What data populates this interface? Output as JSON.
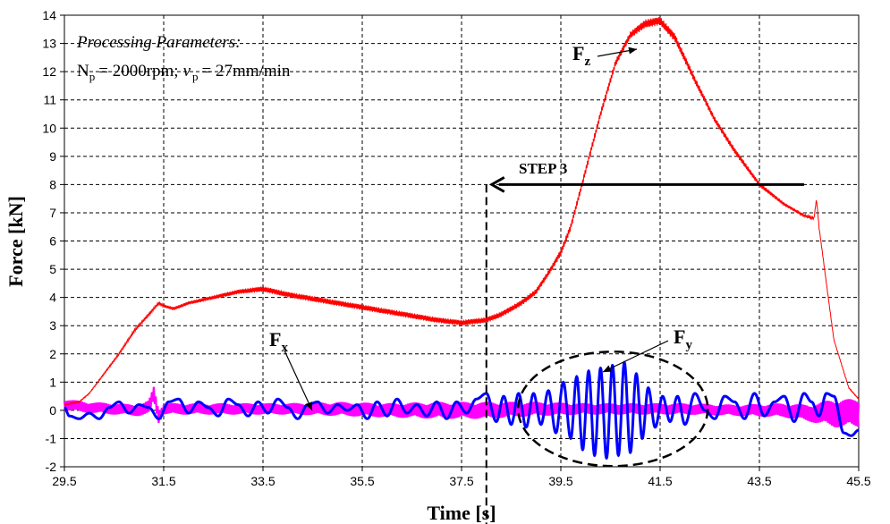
{
  "chart_data": {
    "type": "line",
    "title": "",
    "xlabel": "Time [s]",
    "ylabel": "Force [kN]",
    "xlim": [
      29.5,
      45.5
    ],
    "ylim": [
      -2,
      14
    ],
    "xticks": [
      29.5,
      31.5,
      33.5,
      35.5,
      37.5,
      39.5,
      41.5,
      43.5,
      45.5
    ],
    "xtick_labels": [
      "29.5",
      "31.5",
      "33.5",
      "35.5",
      "37.5",
      "39.5",
      "41.5",
      "43.5",
      "45.5"
    ],
    "yticks": [
      -2,
      -1,
      0,
      1,
      2,
      3,
      4,
      5,
      6,
      7,
      8,
      9,
      10,
      11,
      12,
      13,
      14
    ],
    "ytick_labels": [
      "-2",
      "-1",
      "0",
      "1",
      "2",
      "3",
      "4",
      "5",
      "6",
      "7",
      "8",
      "9",
      "10",
      "11",
      "12",
      "13",
      "14"
    ],
    "grid": true,
    "series": [
      {
        "name": "Fz",
        "color": "#ff0000",
        "x": [
          29.5,
          29.8,
          30.0,
          30.3,
          30.6,
          30.9,
          31.2,
          31.4,
          31.5,
          31.7,
          32.0,
          32.5,
          33.0,
          33.5,
          34.0,
          35.0,
          36.0,
          37.0,
          37.5,
          38.0,
          38.3,
          38.7,
          39.0,
          39.3,
          39.5,
          39.7,
          40.0,
          40.3,
          40.6,
          40.9,
          41.2,
          41.5,
          41.8,
          42.2,
          42.6,
          43.0,
          43.5,
          44.0,
          44.4,
          44.6,
          44.65,
          44.7,
          45.0,
          45.3,
          45.5
        ],
        "y": [
          0.2,
          0.3,
          0.6,
          1.3,
          2.0,
          2.8,
          3.4,
          3.8,
          3.7,
          3.6,
          3.8,
          4.0,
          4.2,
          4.3,
          4.1,
          3.8,
          3.5,
          3.2,
          3.1,
          3.2,
          3.4,
          3.8,
          4.2,
          5.0,
          5.6,
          6.5,
          8.5,
          10.5,
          12.3,
          13.3,
          13.7,
          13.8,
          13.2,
          11.7,
          10.3,
          9.2,
          8.0,
          7.3,
          6.9,
          6.8,
          7.5,
          6.5,
          2.5,
          0.8,
          0.4
        ],
        "noise": [
          0.02,
          0.02,
          0.02,
          0.03,
          0.04,
          0.05,
          0.05,
          0.05,
          0.05,
          0.06,
          0.06,
          0.07,
          0.08,
          0.1,
          0.1,
          0.1,
          0.1,
          0.1,
          0.1,
          0.1,
          0.1,
          0.1,
          0.1,
          0.1,
          0.12,
          0.12,
          0.12,
          0.12,
          0.12,
          0.12,
          0.15,
          0.15,
          0.15,
          0.12,
          0.1,
          0.1,
          0.08,
          0.06,
          0.05,
          0.04,
          0.03,
          0.03,
          0.02,
          0.02,
          0.02
        ]
      },
      {
        "name": "Fx",
        "color": "#ff00ff",
        "x": [
          29.5,
          30.0,
          30.5,
          31.0,
          31.2,
          31.3,
          31.4,
          31.5,
          32.0,
          33.0,
          34.0,
          35.0,
          36.0,
          37.0,
          38.0,
          39.0,
          40.0,
          41.0,
          42.0,
          43.0,
          44.0,
          44.5,
          45.0,
          45.5
        ],
        "y": [
          0.2,
          0.1,
          0.05,
          0.0,
          0.1,
          0.6,
          -0.2,
          0.05,
          0.05,
          0.05,
          0.05,
          0.05,
          0.0,
          0.0,
          0.0,
          0.05,
          0.05,
          0.05,
          0.05,
          0.0,
          0.0,
          -0.1,
          -0.1,
          -0.1
        ],
        "noise": [
          0.2,
          0.2,
          0.2,
          0.2,
          0.25,
          0.25,
          0.25,
          0.2,
          0.2,
          0.2,
          0.2,
          0.25,
          0.25,
          0.3,
          0.3,
          0.25,
          0.2,
          0.2,
          0.2,
          0.2,
          0.25,
          0.3,
          0.5,
          0.5
        ]
      },
      {
        "name": "Fy",
        "color": "#0000ff",
        "x": [
          29.5,
          29.6,
          29.8,
          30.0,
          30.2,
          30.4,
          30.6,
          30.8,
          31.0,
          31.2,
          31.4,
          31.6,
          31.8,
          32.0,
          32.2,
          32.4,
          32.6,
          32.8,
          33.0,
          33.2,
          33.4,
          33.6,
          33.8,
          34.0,
          34.2,
          34.4,
          34.6,
          34.8,
          35.0,
          35.2,
          35.4,
          35.6,
          35.8,
          36.0,
          36.2,
          36.4,
          36.6,
          36.8,
          37.0,
          37.2,
          37.4,
          37.6,
          37.8,
          38.0,
          38.2,
          38.35,
          38.5,
          38.65,
          38.8,
          38.95,
          39.1,
          39.25,
          39.4,
          39.55,
          39.7,
          39.82,
          39.94,
          40.06,
          40.18,
          40.3,
          40.42,
          40.54,
          40.66,
          40.78,
          40.9,
          41.02,
          41.14,
          41.26,
          41.4,
          41.55,
          41.7,
          41.85,
          42.0,
          42.2,
          42.4,
          42.6,
          42.8,
          43.0,
          43.2,
          43.4,
          43.6,
          43.8,
          44.0,
          44.2,
          44.4,
          44.55,
          44.7,
          44.85,
          45.0,
          45.2,
          45.35,
          45.5
        ],
        "y": [
          0.1,
          -0.2,
          -0.3,
          -0.1,
          -0.3,
          0.1,
          0.3,
          -0.1,
          0.2,
          0.1,
          -0.3,
          0.3,
          0.4,
          -0.1,
          0.3,
          0.1,
          -0.2,
          0.4,
          0.2,
          -0.2,
          0.3,
          -0.1,
          0.4,
          0.1,
          -0.3,
          0.2,
          0.3,
          -0.1,
          0.2,
          0.0,
          0.2,
          -0.3,
          0.3,
          -0.2,
          0.4,
          -0.1,
          0.2,
          -0.2,
          0.3,
          -0.3,
          0.3,
          -0.1,
          0.4,
          0.6,
          -0.4,
          0.5,
          -0.5,
          0.6,
          -0.6,
          0.6,
          -0.5,
          0.7,
          -0.8,
          1.0,
          -1.0,
          1.2,
          -1.4,
          1.4,
          -1.6,
          1.5,
          -1.7,
          1.6,
          -1.6,
          1.7,
          -1.5,
          1.3,
          -1.0,
          0.8,
          -0.6,
          0.5,
          -0.4,
          0.5,
          -0.5,
          0.6,
          0.0,
          -0.3,
          0.5,
          0.3,
          -0.3,
          0.6,
          -0.2,
          0.3,
          0.5,
          -0.4,
          0.6,
          0.3,
          -0.2,
          0.6,
          0.5,
          -0.8,
          -0.9,
          -0.7
        ]
      }
    ],
    "annotations": {
      "params_heading": "Processing Parameters:",
      "np_prefix": "N",
      "np_sub": "p",
      "np_value": "= 2000rpm;",
      "vp_symbol": "v",
      "vp_sub": "p",
      "vp_value": "= 27mm/min",
      "step_label": "STEP 3",
      "step_time": 38.0,
      "step_arrow_y": 8,
      "step_arrow_from": 44.4,
      "fz_F": "F",
      "fz_sub": "z",
      "fx_F": "F",
      "fx_sub": "x",
      "fy_F": "F",
      "fy_sub": "y"
    }
  }
}
